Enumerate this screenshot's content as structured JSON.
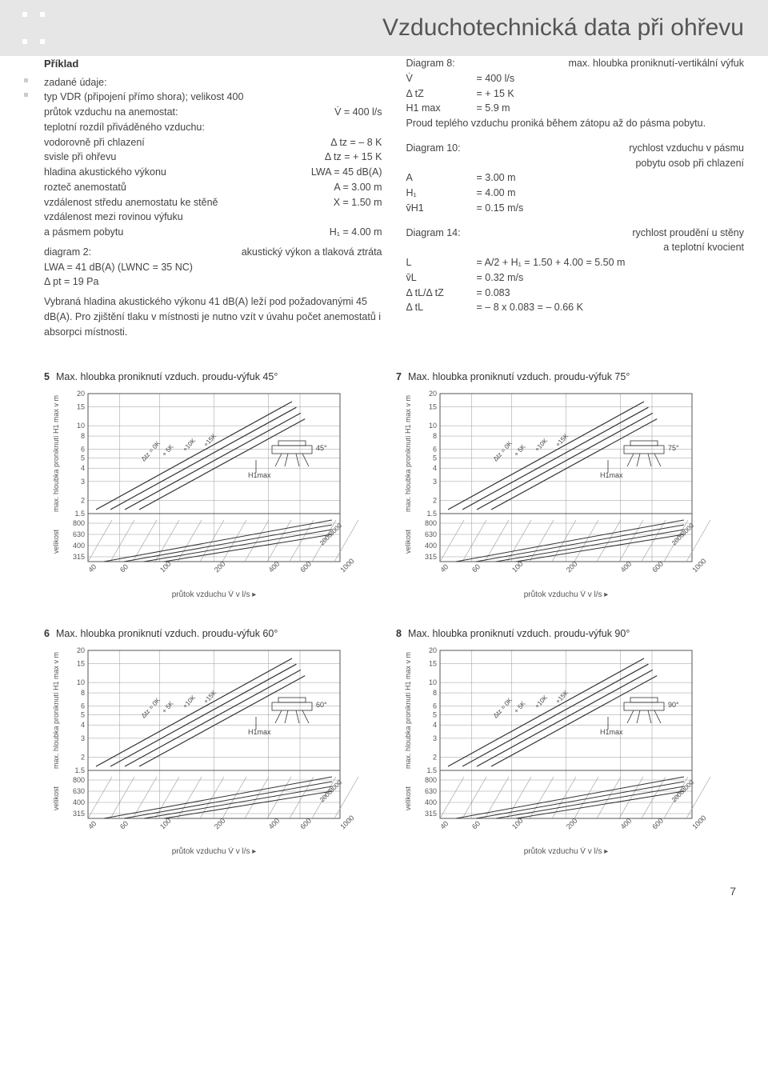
{
  "header": {
    "title": "Vzduchotechnická data při ohřevu"
  },
  "left": {
    "h": "Příklad",
    "sub": "zadané údaje:",
    "line1": "typ VDR (připojení přímo shora); velikost 400",
    "rows": [
      {
        "l": "průtok vzduchu na anemostat:",
        "v": "V̇ = 400 l/s"
      },
      {
        "l": "teplotní rozdíl přiváděného vzduchu:",
        "v": ""
      },
      {
        "l": "vodorovně při chlazení",
        "v": "Δ tz = – 8 K"
      },
      {
        "l": "svisle při ohřevu",
        "v": "Δ tz = + 15 K"
      },
      {
        "l": "hladina akustického výkonu",
        "v": "LWA = 45 dB(A)"
      },
      {
        "l": "rozteč anemostatů",
        "v": "A = 3.00 m"
      },
      {
        "l": "vzdálenost středu anemostatu ke stěně",
        "v": "X = 1.50 m"
      },
      {
        "l": "vzdálenost mezi rovinou výfuku",
        "v": ""
      },
      {
        "l": "a pásmem pobytu",
        "v": "H₁ = 4.00 m"
      }
    ],
    "d2a": "diagram 2:",
    "d2b": "akustický výkon a tlaková ztráta",
    "l2a": "LWA = 41 dB(A) (LWNC = 35 NC)",
    "l2b": "Δ pt = 19 Pa",
    "para": "Vybraná hladina akustického výkonu 41 dB(A) leží pod požadovanými 45 dB(A). Pro zjištění tlaku v místnosti je nutno vzít v úvahu počet anemostatů i absorpci místnosti."
  },
  "right": {
    "d8a": "Diagram 8:",
    "d8b": "max. hloubka proniknutí-vertikální výfuk",
    "r8": [
      {
        "l": "V̇",
        "v": "= 400 l/s"
      },
      {
        "l": "Δ tZ",
        "v": "= + 15 K"
      },
      {
        "l": "H1 max",
        "v": "= 5.9 m"
      }
    ],
    "p8": "Proud teplého vzduchu proniká během zátopu až do pásma pobytu.",
    "d10a": "Diagram 10:",
    "d10b": "rychlost vzduchu v pásmu",
    "d10c": "pobytu osob při chlazení",
    "r10": [
      {
        "l": "A",
        "v": "= 3.00 m"
      },
      {
        "l": "H₁",
        "v": "= 4.00 m"
      },
      {
        "l": "v̄H1",
        "v": "= 0.15 m/s"
      }
    ],
    "d14a": "Diagram 14:",
    "d14b": "rychlost proudění u stěny",
    "d14c": "a teplotní kvocient",
    "r14": [
      {
        "l": "L",
        "v": "= A/2 + H₁ = 1.50 + 4.00 = 5.50 m"
      },
      {
        "l": "v̄L",
        "v": "= 0.32 m/s"
      },
      {
        "l": "Δ tL/Δ tZ",
        "v": "= 0.083"
      },
      {
        "l": "Δ tL",
        "v": "= – 8 x 0.083 = – 0.66 K"
      }
    ]
  },
  "chart_common": {
    "y_label": "max. hloubka proniknutí H1 max v m",
    "y_label2": "velikost",
    "y_ticks": [
      20,
      15,
      10,
      8,
      6,
      5,
      4,
      3,
      2,
      1.5
    ],
    "y_ticks2": [
      800,
      630,
      400,
      315
    ],
    "x_label": "průtok vzduchu V̇ v l/s",
    "x_ticks": [
      40,
      60,
      100,
      200,
      400,
      600,
      1000
    ],
    "line_labels": [
      "Δtz = 0K",
      "+ 5K",
      "+10K",
      "+15K"
    ],
    "size_labels": [
      "3000",
      "2000"
    ],
    "h1max_label": "H1max",
    "bg": "#ffffff",
    "grid": "#999999",
    "line": "#333333",
    "hatch": "#999999"
  },
  "charts": [
    {
      "num": "5",
      "title": "Max. hloubka proniknutí vzduch. proudu-výfuk 45°",
      "angle": "45°"
    },
    {
      "num": "7",
      "title": "Max. hloubka proniknutí vzduch. proudu-výfuk 75°",
      "angle": "75°"
    },
    {
      "num": "6",
      "title": "Max. hloubka proniknutí vzduch. proudu-výfuk 60°",
      "angle": "60°"
    },
    {
      "num": "8",
      "title": "Max. hloubka proniknutí vzduch. proudu-výfuk 90°",
      "angle": "90°"
    }
  ],
  "page_num": "7"
}
